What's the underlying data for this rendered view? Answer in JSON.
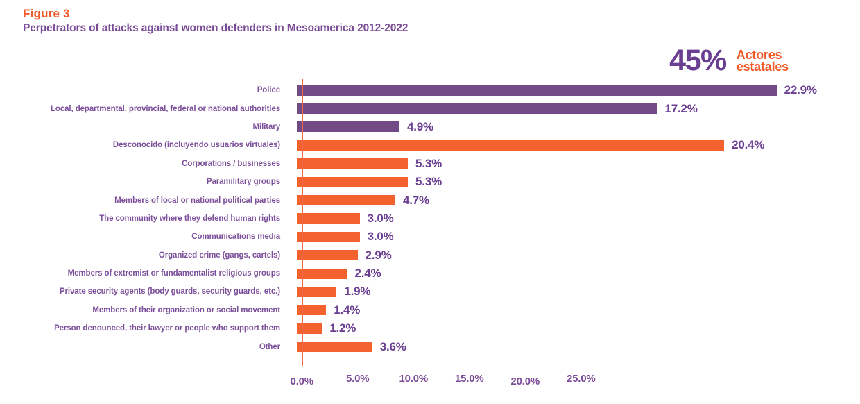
{
  "figure": {
    "label": "Figure 3",
    "title": "Perpetrators of attacks against women defenders in Mesoamerica 2012-2022"
  },
  "callout": {
    "value": "45%",
    "label_lines": [
      "Actores",
      "estatales"
    ]
  },
  "colors": {
    "orange_accent": "#F15A29",
    "orange_bar": "#F2612E",
    "axis_line": "#F2694B",
    "purple_bar": "#724B86",
    "purple_label": "#7C4F9A",
    "purple_value": "#6A3E91",
    "purple_title": "#7A4B96"
  },
  "chart_data": {
    "type": "bar",
    "orientation": "horizontal",
    "title": "Perpetrators of attacks against women defenders in Mesoamerica 2012-2022",
    "categories": [
      "Police",
      "Local, departmental, provincial, federal or national authorities",
      "Military",
      "Desconocido (incluyendo usuarios virtuales)",
      "Corporations / businesses",
      "Paramilitary groups",
      "Members of local or national political parties",
      "The community where they defend human rights",
      "Communications media",
      "Organized crime (gangs, cartels)",
      "Members of extremist or fundamentalist religious groups",
      "Private security agents (body guards, security guards, etc.)",
      "Members of their organization or social movement",
      "Person denounced, their lawyer or people who support them",
      "Other"
    ],
    "values": [
      22.9,
      17.2,
      4.9,
      20.4,
      5.3,
      5.3,
      4.7,
      3.0,
      3.0,
      2.9,
      2.4,
      1.9,
      1.4,
      1.2,
      3.6
    ],
    "value_labels": [
      "22.9%",
      "17.2%",
      "4.9%",
      "20.4%",
      "5.3%",
      "5.3%",
      "4.7%",
      "3.0%",
      "3.0%",
      "2.9%",
      "2.4%",
      "1.9%",
      "1.4%",
      "1.2%",
      "3.6%"
    ],
    "groups": [
      "state",
      "state",
      "state",
      "non_state",
      "non_state",
      "non_state",
      "non_state",
      "non_state",
      "non_state",
      "non_state",
      "non_state",
      "non_state",
      "non_state",
      "non_state",
      "non_state"
    ],
    "group_note": "state actors (purple) = 45% Actores estatales",
    "x_ticks": [
      "0.0%",
      "5.0%",
      "10.0%",
      "15.0%",
      "20.0%",
      "25.0%"
    ],
    "xlim": [
      0,
      25
    ],
    "grid": false,
    "legend_position": "top-right"
  }
}
